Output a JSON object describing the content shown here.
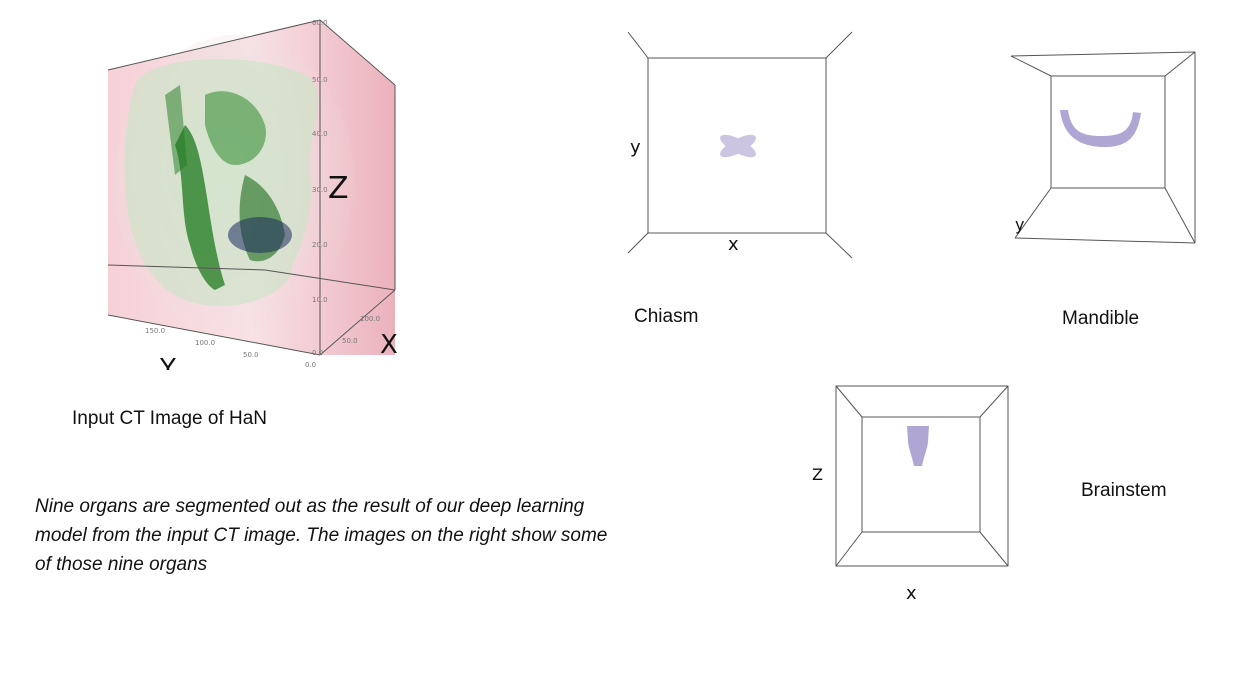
{
  "ct_figure": {
    "caption": "Input CT Image of HaN",
    "axis_z": "Z",
    "axis_x": "X",
    "axis_y": "Y",
    "z_ticks": [
      "60.0",
      "50.0",
      "40.0",
      "30.0",
      "20.0",
      "10.0",
      "0.0"
    ],
    "y_ticks": [
      "150.0",
      "100.0",
      "50.0",
      "0.0"
    ],
    "x_ticks": [
      "100.0",
      "50.0"
    ]
  },
  "organs": [
    {
      "name": "Chiasm",
      "axis_a": "y",
      "axis_b": "x"
    },
    {
      "name": "Mandible",
      "axis_a": "y"
    },
    {
      "name": "Brainstem",
      "axis_a": "Z",
      "axis_b": "x"
    }
  ],
  "description": [
    "Nine organs are segmented out as the result of our deep learning",
    "model from the input CT image. The images on the right show some",
    "of those nine organs"
  ],
  "colors": {
    "organ_fill": "#6f5cae",
    "ct_green": "#1f7a1f",
    "ct_pink": "#e6a9b4",
    "frame": "#555555"
  }
}
